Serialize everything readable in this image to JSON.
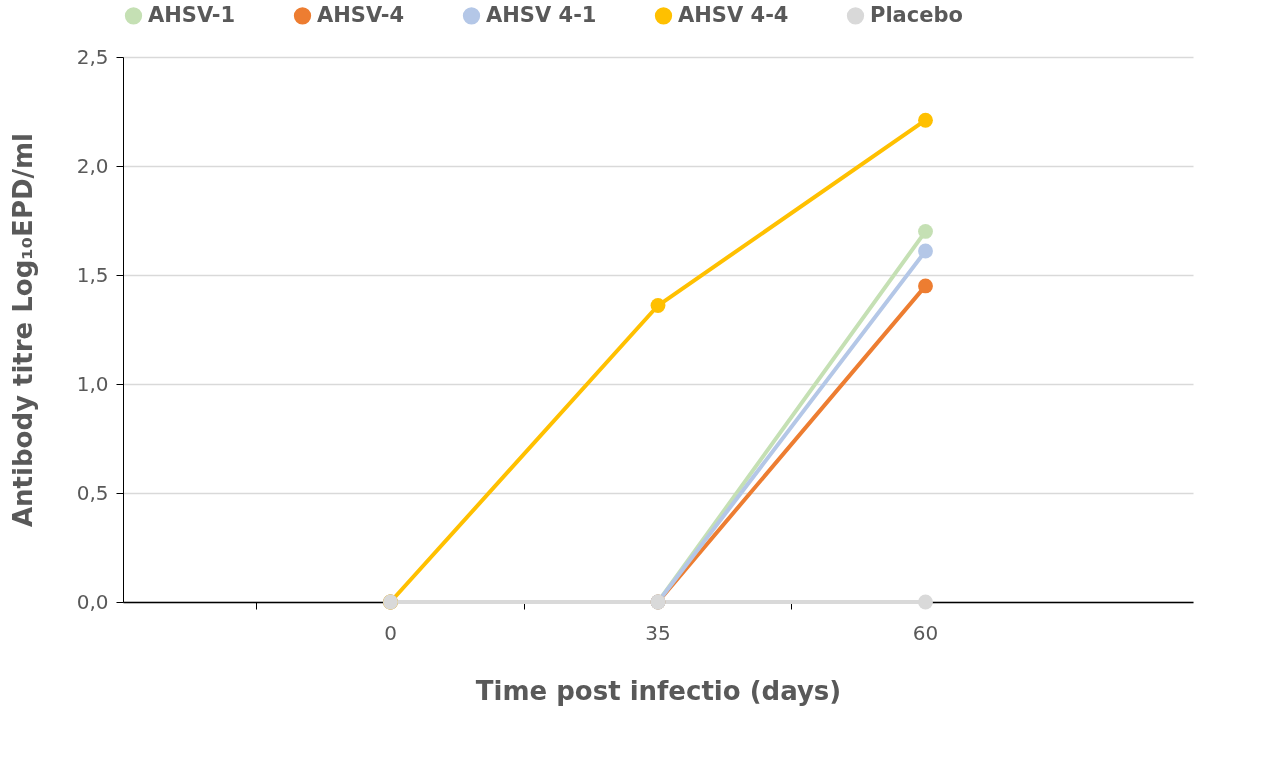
{
  "chart_data": {
    "type": "line",
    "xlabel": "Time post infectio (days)",
    "ylabel": "Antibody titre Log₁₀EPD/ml",
    "categories": [
      "0",
      "35",
      "60"
    ],
    "series": [
      {
        "name": "AHSV-1",
        "color": "#c5e0b4",
        "values": [
          0,
          0,
          1.7
        ]
      },
      {
        "name": "AHSV-4",
        "color": "#ed7d31",
        "values": [
          0,
          0,
          1.45
        ]
      },
      {
        "name": "AHSV 4-1",
        "color": "#b4c7e7",
        "values": [
          0,
          0,
          1.61
        ]
      },
      {
        "name": "AHSV 4-4",
        "color": "#ffc000",
        "values": [
          0,
          1.36,
          2.21
        ]
      },
      {
        "name": "Placebo",
        "color": "#d9d9d9",
        "values": [
          0,
          0,
          0
        ]
      }
    ],
    "ylim": [
      0,
      2.5
    ],
    "yticks": [
      {
        "value": 0,
        "label": "0,0"
      },
      {
        "value": 0.5,
        "label": "0,5"
      },
      {
        "value": 1,
        "label": "1,0"
      },
      {
        "value": 1.5,
        "label": "1,5"
      },
      {
        "value": 2,
        "label": "2,0"
      },
      {
        "value": 2.5,
        "label": "2,5"
      }
    ],
    "grid": "y",
    "legend": "top",
    "marker": "circle",
    "line_style": "solid"
  }
}
